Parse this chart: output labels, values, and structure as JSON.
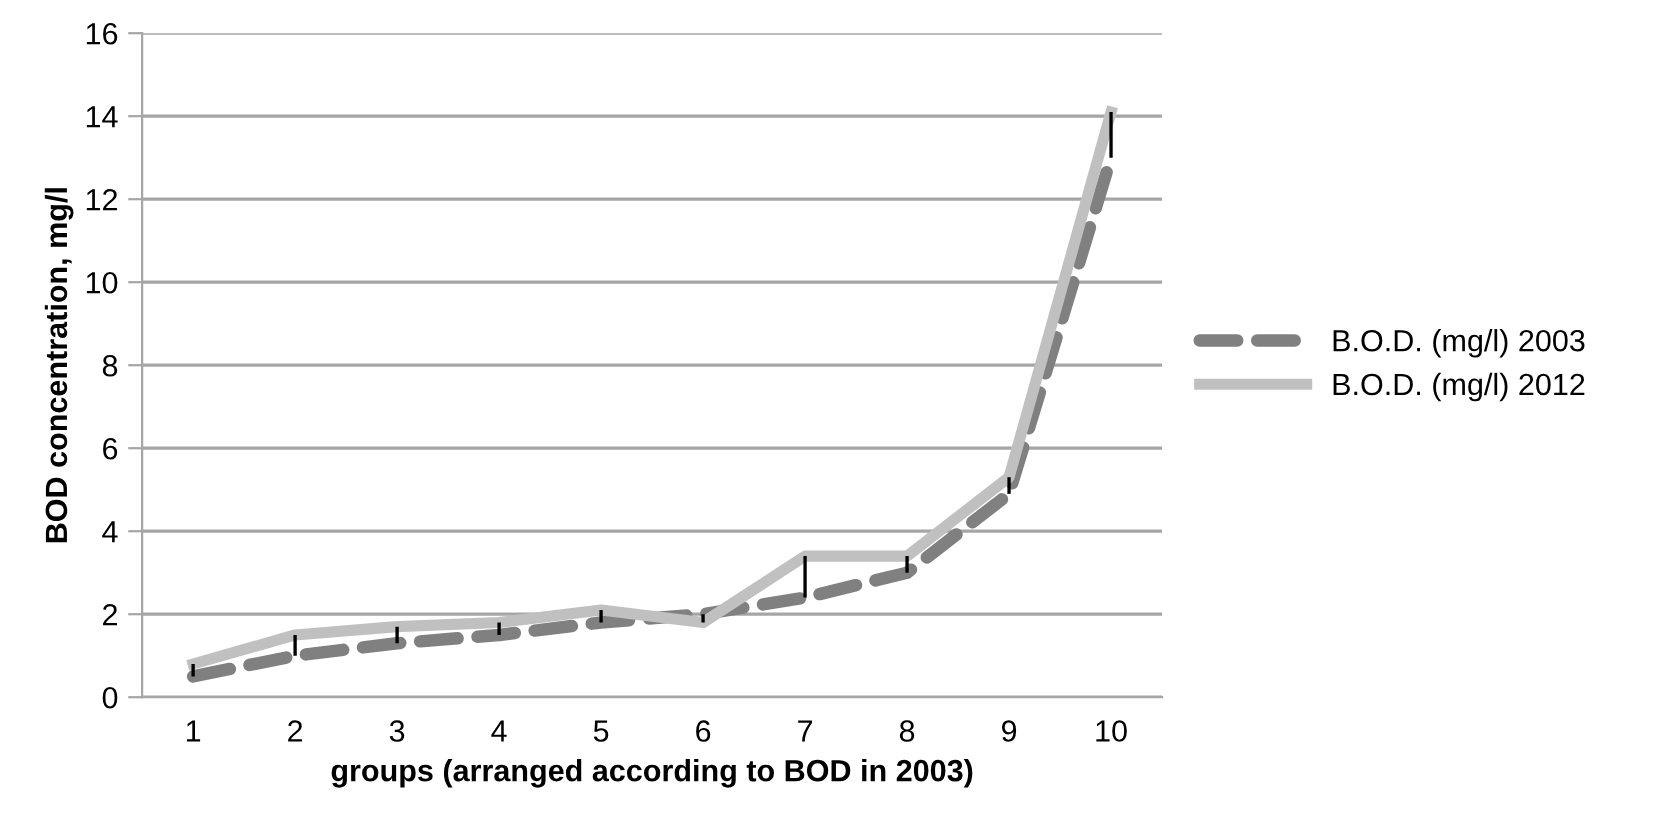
{
  "chart_data": {
    "type": "line",
    "xlabel": "groups (arranged according to BOD in 2003)",
    "ylabel": "BOD concentration, mg/l",
    "categories": [
      "1",
      "2",
      "3",
      "4",
      "5",
      "6",
      "7",
      "8",
      "9",
      "10"
    ],
    "series": [
      {
        "name": "B.O.D. (mg/l) 2003",
        "color": "#808080",
        "line_style": "dashed",
        "values": [
          0.5,
          1.0,
          1.3,
          1.5,
          1.8,
          2.0,
          2.4,
          3.0,
          4.9,
          13.0
        ],
        "errors": [
          [
            0.5,
            0.8
          ],
          [
            1.0,
            1.5
          ],
          [
            1.3,
            1.7
          ],
          [
            1.5,
            1.8
          ],
          [
            1.8,
            2.1
          ],
          [
            1.8,
            2.0
          ],
          [
            2.4,
            3.4
          ],
          [
            3.0,
            3.4
          ],
          [
            4.9,
            5.3
          ],
          [
            13.0,
            14.1
          ]
        ]
      },
      {
        "name": "B.O.D. (mg/l) 2012",
        "color": "#c0c0c0",
        "line_style": "solid",
        "values": [
          0.8,
          1.5,
          1.7,
          1.8,
          2.1,
          1.8,
          3.4,
          3.4,
          5.3,
          14.1
        ]
      }
    ],
    "ylim": [
      0,
      16
    ],
    "yticks": [
      0,
      2,
      4,
      6,
      8,
      10,
      12,
      14,
      16
    ],
    "grid": "y",
    "legend": "right",
    "marker": "none"
  }
}
